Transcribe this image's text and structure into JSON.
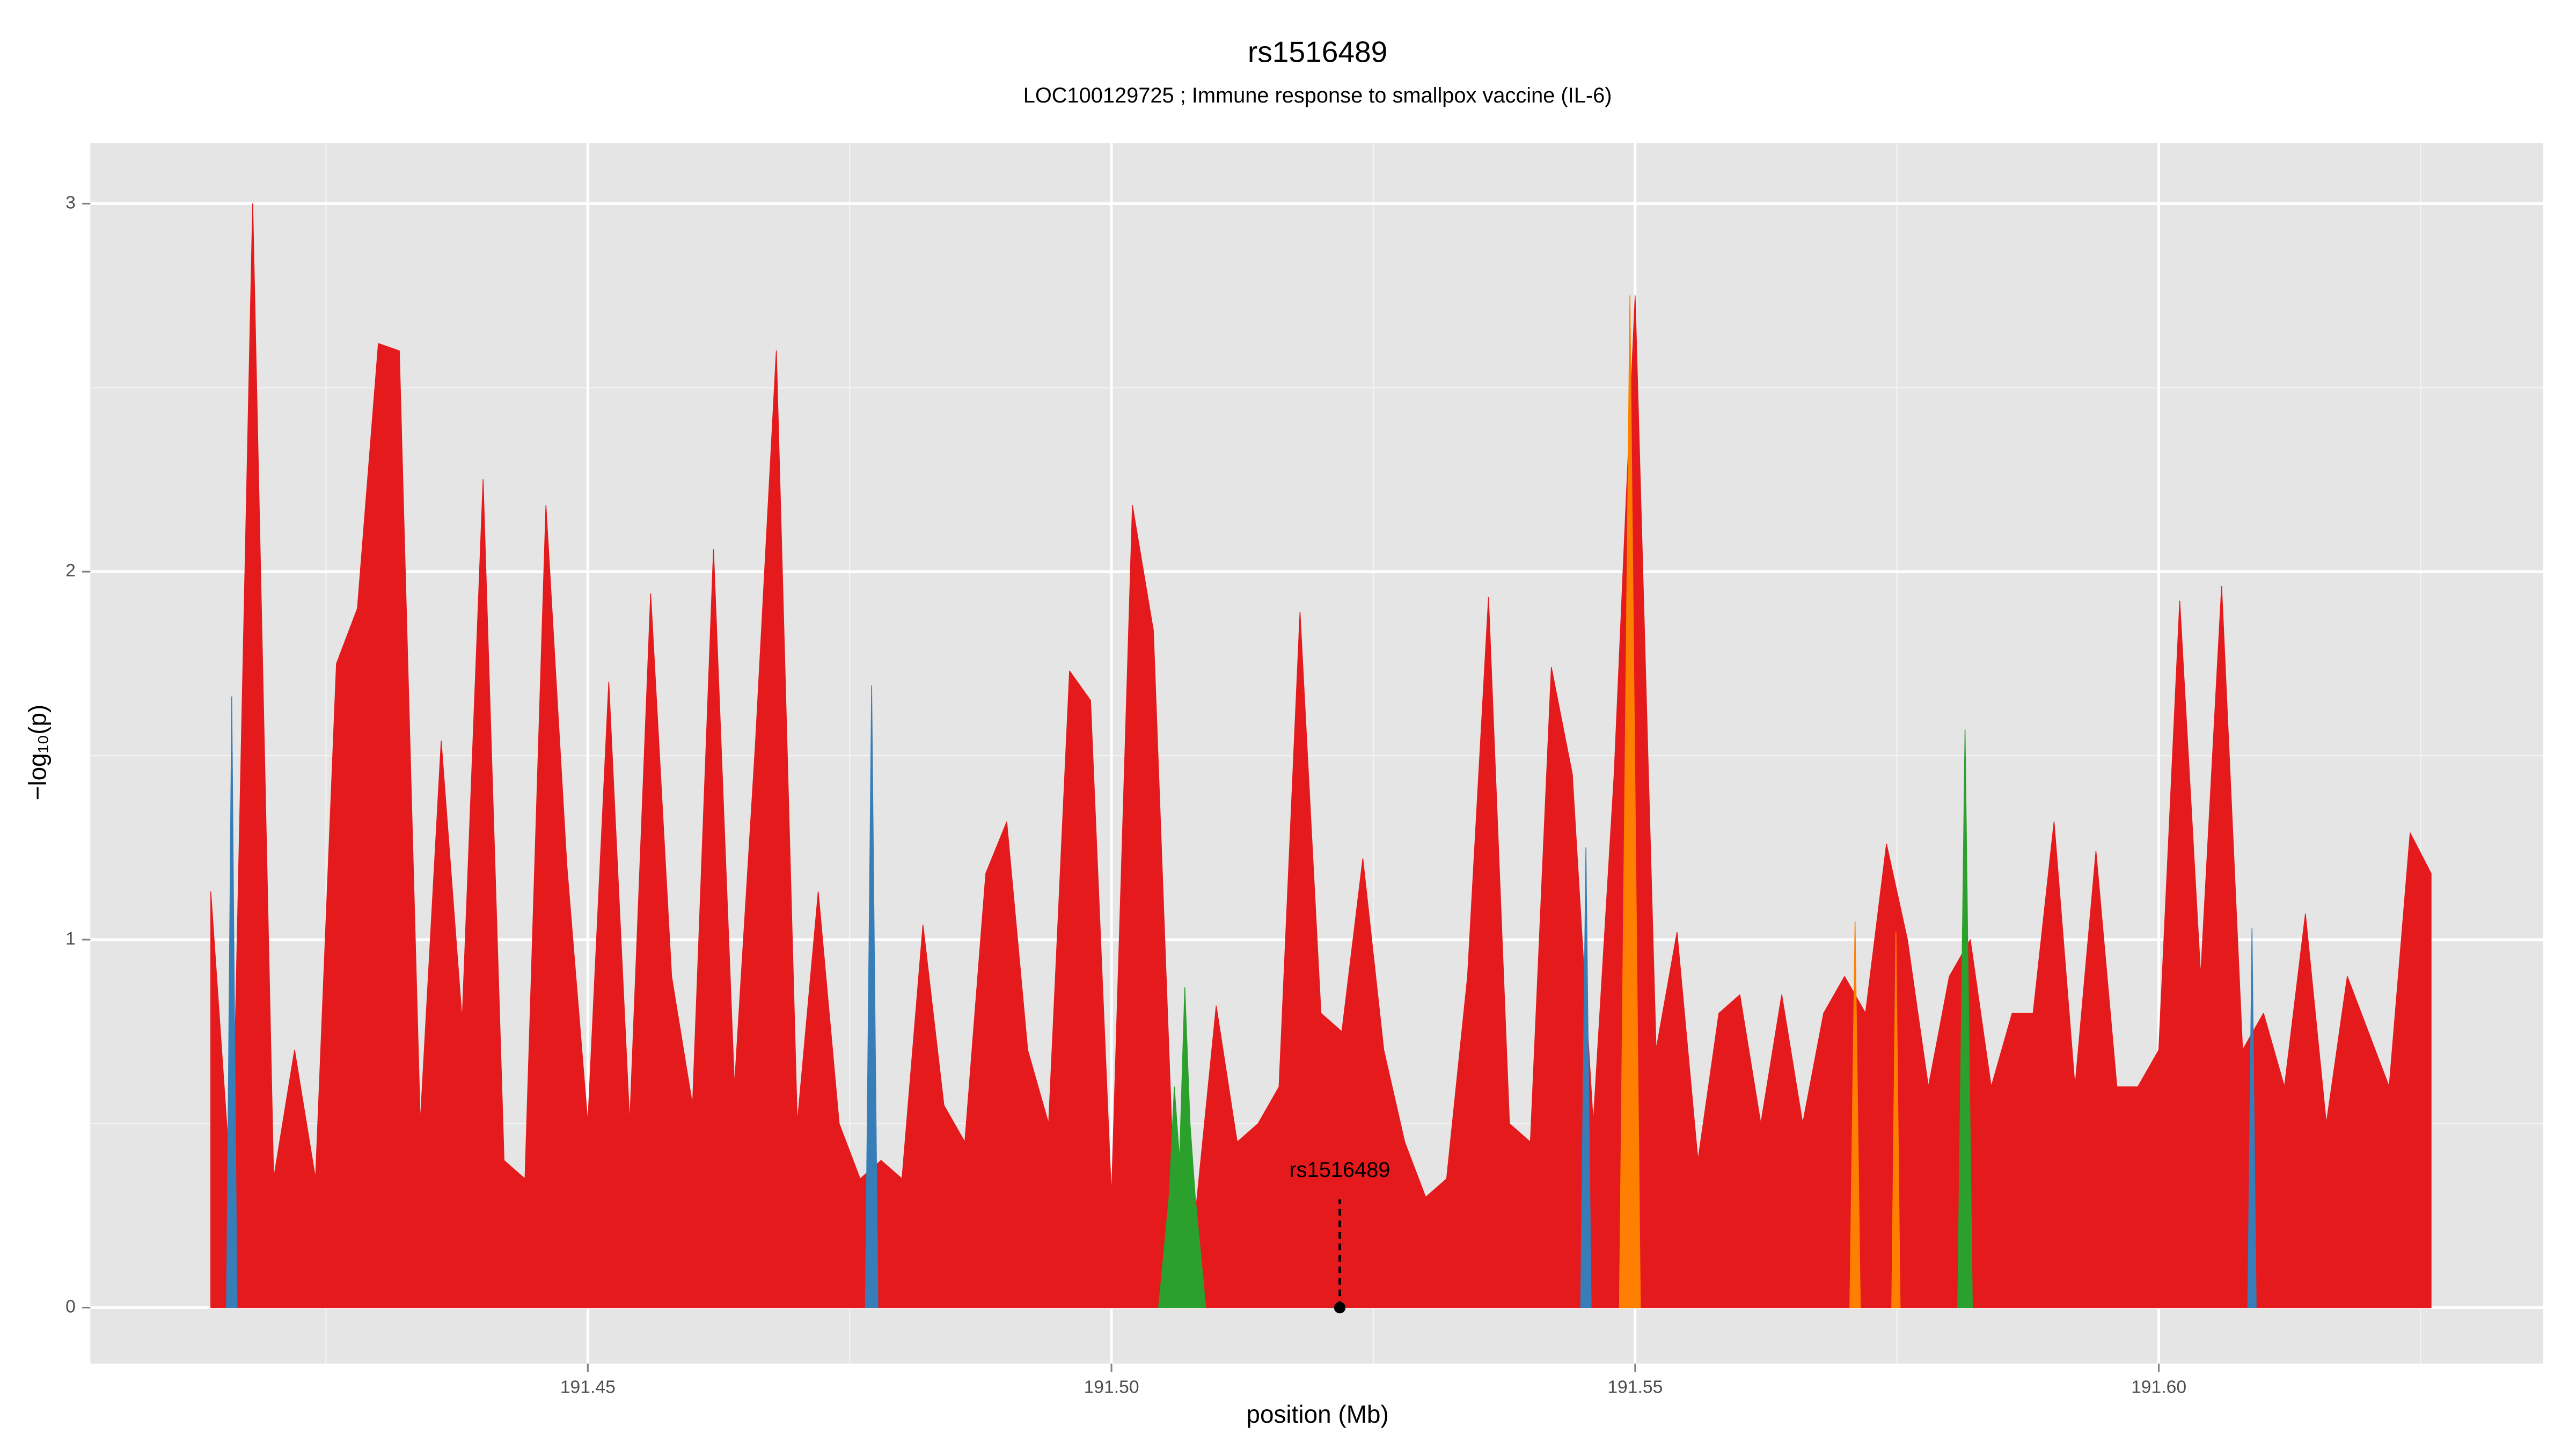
{
  "chart_data": {
    "type": "area",
    "title": "rs1516489",
    "subtitle": "LOC100129725 ; Immune response to smallpox vaccine (IL-6)",
    "x_label": "position (Mb)",
    "y_label": "−log₁₀(p)",
    "xlim": [
      191.4025,
      191.6367
    ],
    "ylim": [
      -0.152,
      3.165
    ],
    "xticks": [
      191.45,
      {
        "value": 191.5,
        "label": "191.50"
      },
      191.55,
      {
        "value": 191.6,
        "label": "191.60"
      }
    ],
    "yticks": [
      0,
      1,
      2,
      3
    ],
    "x_minor_ticks": [
      191.425,
      191.475,
      191.525,
      191.575,
      191.625
    ],
    "y_minor_ticks": [
      0.5,
      1.5,
      2.5
    ],
    "grid": true,
    "series": [
      {
        "color": "#e41a1c",
        "x": [
          191.414,
          191.416,
          191.418,
          191.42,
          191.422,
          191.424,
          191.426,
          191.428,
          191.43,
          191.432,
          191.434,
          191.436,
          191.438,
          191.44,
          191.442,
          191.444,
          191.446,
          191.448,
          191.45,
          191.452,
          191.454,
          191.456,
          191.458,
          191.46,
          191.462,
          191.464,
          191.466,
          191.468,
          191.47,
          191.472,
          191.474,
          191.476,
          191.478,
          191.48,
          191.482,
          191.484,
          191.486,
          191.488,
          191.49,
          191.492,
          191.494,
          191.496,
          191.498,
          191.5,
          191.502,
          191.504,
          191.506,
          191.508,
          191.51,
          191.512,
          191.514,
          191.516,
          191.518,
          191.52,
          191.522,
          191.524,
          191.526,
          191.528,
          191.53,
          191.532,
          191.534,
          191.536,
          191.538,
          191.54,
          191.542,
          191.544,
          191.546,
          191.548,
          191.55,
          191.552,
          191.554,
          191.556,
          191.558,
          191.56,
          191.562,
          191.564,
          191.566,
          191.568,
          191.57,
          191.572,
          191.574,
          191.576,
          191.578,
          191.58,
          191.582,
          191.584,
          191.586,
          191.588,
          191.59,
          191.592,
          191.594,
          191.596,
          191.598,
          191.6,
          191.602,
          191.604,
          191.606,
          191.608,
          191.61,
          191.612,
          191.614,
          191.616,
          191.618,
          191.62,
          191.622,
          191.624,
          191.626
        ],
        "values": [
          1.13,
          0.3,
          3.0,
          0.35,
          0.7,
          0.35,
          1.75,
          1.9,
          2.62,
          2.6,
          0.5,
          1.54,
          0.78,
          2.25,
          0.4,
          0.35,
          2.18,
          1.2,
          0.5,
          1.7,
          0.5,
          1.94,
          0.9,
          0.55,
          2.06,
          0.6,
          1.53,
          2.6,
          0.5,
          1.13,
          0.5,
          0.35,
          0.4,
          0.35,
          1.04,
          0.55,
          0.45,
          1.18,
          1.32,
          0.7,
          0.5,
          1.73,
          1.65,
          0.3,
          2.18,
          1.84,
          0.3,
          0.25,
          0.82,
          0.45,
          0.5,
          0.6,
          1.89,
          0.8,
          0.75,
          1.22,
          0.7,
          0.45,
          0.3,
          0.35,
          0.9,
          1.93,
          0.5,
          0.45,
          1.74,
          1.45,
          0.5,
          1.45,
          2.75,
          0.7,
          1.02,
          0.4,
          0.8,
          0.85,
          0.5,
          0.85,
          0.5,
          0.8,
          0.9,
          0.8,
          1.26,
          1.0,
          0.6,
          0.9,
          1.0,
          0.6,
          0.8,
          0.8,
          1.32,
          0.6,
          1.24,
          0.6,
          0.6,
          0.7,
          1.92,
          0.9,
          1.96,
          0.7,
          0.8,
          0.6,
          1.07,
          0.5,
          0.9,
          0.75,
          0.6,
          1.29,
          1.18
        ]
      },
      {
        "color": "#ff7f00",
        "x": [
          191.5485,
          191.5495,
          191.5505,
          null,
          191.5705,
          191.571,
          191.5715,
          null,
          191.5745,
          191.5749,
          191.5753
        ],
        "values": [
          0,
          2.75,
          0,
          null,
          0,
          1.05,
          0,
          null,
          0,
          1.02,
          0
        ]
      },
      {
        "color": "#2ca02c",
        "x": [
          191.5045,
          191.5055,
          191.506,
          191.5065,
          191.507,
          191.5075,
          191.508,
          191.509,
          null,
          191.5808,
          191.5815,
          191.5822
        ],
        "values": [
          0,
          0.3,
          0.6,
          0.4,
          0.87,
          0.5,
          0.3,
          0,
          null,
          0,
          1.57,
          0
        ]
      },
      {
        "color": "#377eb8",
        "x": [
          191.4155,
          191.416,
          191.4165,
          null,
          191.4765,
          191.4771,
          191.4777,
          null,
          191.5448,
          191.5453,
          191.5458,
          null,
          191.6085,
          191.6089,
          191.6093
        ],
        "values": [
          0,
          1.66,
          0,
          null,
          0,
          1.69,
          0,
          null,
          0,
          1.25,
          0,
          null,
          0,
          1.03,
          0
        ]
      }
    ],
    "annotation": {
      "label": "rs1516489",
      "x": 191.5218,
      "y": 0
    }
  }
}
